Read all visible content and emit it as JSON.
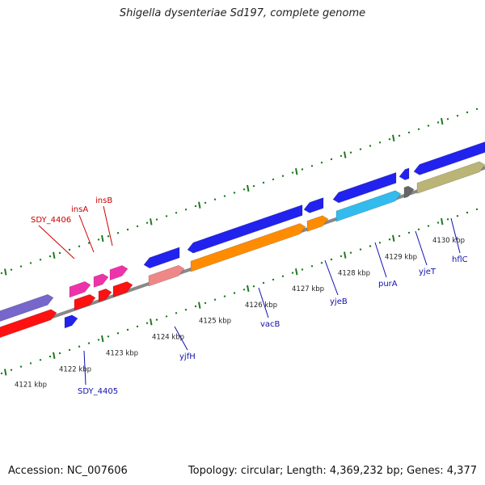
{
  "title": "Shigella dysenteriae Sd197, complete genome",
  "footer": {
    "accession": "Accession: NC_007606",
    "stats": "Topology: circular; Length: 4,369,232 bp; Genes: 4,377"
  },
  "colors": {
    "backbone": "#888888",
    "tick": "#1e7a1e",
    "label_blue": "#1010b0",
    "label_red": "#cc0000"
  },
  "ticks": [
    {
      "label": "4121 kbp"
    },
    {
      "label": "4122 kbp"
    },
    {
      "label": "4123 kbp"
    },
    {
      "label": "4124 kbp"
    },
    {
      "label": "4125 kbp"
    },
    {
      "label": "4126 kbp"
    },
    {
      "label": "4127 kbp"
    },
    {
      "label": "4128 kbp"
    },
    {
      "label": "4129 kbp"
    },
    {
      "label": "4130 kbp"
    }
  ],
  "features": [
    {
      "name": "",
      "color": "#7766cc"
    },
    {
      "name": "",
      "color": "#ff1111"
    },
    {
      "name": "",
      "color": "#2222ee"
    },
    {
      "name": "SDY_4406",
      "color": "#ee33aa"
    },
    {
      "name": "insA",
      "color": "#ee33aa"
    },
    {
      "name": "insB",
      "color": "#ee33aa"
    },
    {
      "name": "",
      "color": "#ff1111"
    },
    {
      "name": "",
      "color": "#ff1111"
    },
    {
      "name": "",
      "color": "#ff1111"
    },
    {
      "name": "",
      "color": "#2222ee"
    },
    {
      "name": "",
      "color": "#2222ee"
    },
    {
      "name": "",
      "color": "#2222ee"
    },
    {
      "name": "",
      "color": "#2222ee"
    },
    {
      "name": "",
      "color": "#2222ee"
    },
    {
      "name": "",
      "color": "#2222ee"
    },
    {
      "name": "",
      "color": "#bbb477"
    },
    {
      "name": "",
      "color": "#666666"
    },
    {
      "name": "SDY_4405",
      "color": "#2222ee"
    },
    {
      "name": "yjfH",
      "color": "#ee8888"
    },
    {
      "name": "vacB",
      "color": "#ff8c00"
    },
    {
      "name": "",
      "color": "#ff8c00"
    },
    {
      "name": "yjeB",
      "color": "#ff8c00"
    },
    {
      "name": "purA",
      "color": "#33bbee"
    },
    {
      "name": "yjeT",
      "color": "#666666"
    },
    {
      "name": "hflC",
      "color": "#bbb477"
    }
  ]
}
